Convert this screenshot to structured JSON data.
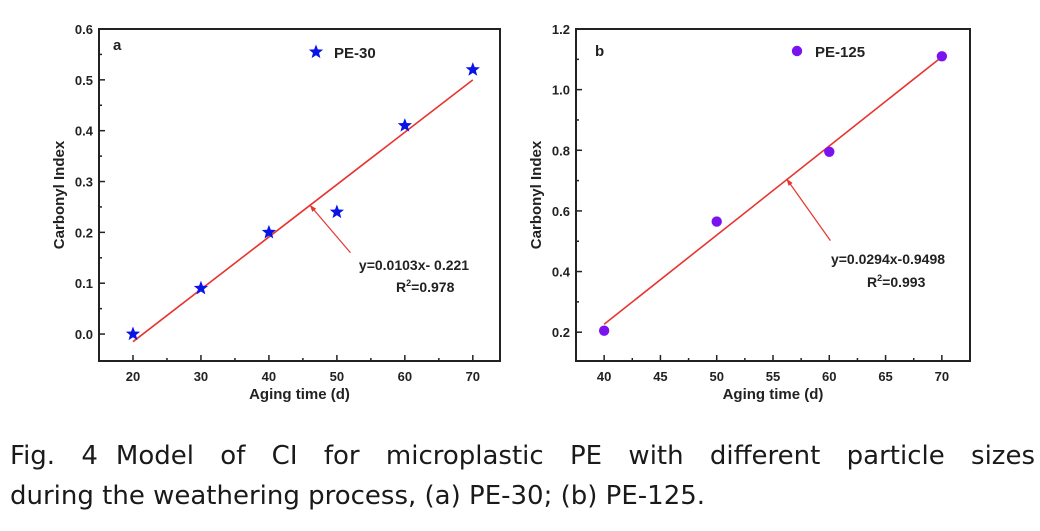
{
  "chart_data": [
    {
      "type": "scatter",
      "panel_label": "a",
      "series": [
        {
          "name": "PE-30",
          "marker": "star",
          "color": "#0a14e6",
          "x": [
            20,
            30,
            40,
            50,
            60,
            70
          ],
          "y": [
            0.0,
            0.09,
            0.2,
            0.24,
            0.41,
            0.52
          ]
        }
      ],
      "fit": {
        "type": "linear",
        "slope": 0.0103,
        "intercept": -0.221,
        "x_range": [
          20,
          70
        ],
        "color": "#e8342f",
        "equation_label": "y=0.0103x- 0.221",
        "r2_label_prefix": "R",
        "r2_label_sup": "2",
        "r2_label_value": "=0.978",
        "annotation_arrow_target": [
          46,
          0.254
        ],
        "annotation_arrow_source": [
          52,
          0.16
        ]
      },
      "xlabel": "Aging time (d)",
      "ylabel": "Carbonyl Index",
      "xlim": [
        15,
        74
      ],
      "ylim": [
        -0.053,
        0.6
      ],
      "xticks": [
        20,
        30,
        40,
        50,
        60,
        70
      ],
      "xtick_labels": [
        "20",
        "30",
        "40",
        "50",
        "60",
        "70"
      ],
      "xminor": [
        25,
        35,
        45,
        55,
        65
      ],
      "yticks": [
        0.0,
        0.1,
        0.2,
        0.3,
        0.4,
        0.5,
        0.6
      ],
      "ytick_labels": [
        "0.0",
        "0.1",
        "0.2",
        "0.3",
        "0.4",
        "0.5",
        "0.6"
      ],
      "yminor": [
        0.05,
        0.15,
        0.25,
        0.35,
        0.45,
        0.55
      ],
      "grid": false,
      "legend_position": "top-center"
    },
    {
      "type": "scatter",
      "panel_label": "b",
      "series": [
        {
          "name": "PE-125",
          "marker": "circle",
          "color": "#7b12f0",
          "x": [
            40,
            50,
            60,
            70
          ],
          "y": [
            0.205,
            0.565,
            0.795,
            1.11
          ]
        }
      ],
      "fit": {
        "type": "linear",
        "slope": 0.0294,
        "intercept": -0.9498,
        "x_range": [
          40,
          70
        ],
        "color": "#e8342f",
        "equation_label": "y=0.0294x-0.9498",
        "r2_label_prefix": "R",
        "r2_label_sup": "2",
        "r2_label_value": "=0.993",
        "annotation_arrow_target": [
          56.2,
          0.706
        ],
        "annotation_arrow_source": [
          60.1,
          0.502
        ]
      },
      "xlabel": "Aging time (d)",
      "ylabel": "Carbonyl Index",
      "xlim": [
        37.5,
        72.5
      ],
      "ylim": [
        0.105,
        1.2
      ],
      "xticks": [
        40,
        45,
        50,
        55,
        60,
        65,
        70
      ],
      "xtick_labels": [
        "40",
        "45",
        "50",
        "55",
        "60",
        "65",
        "70"
      ],
      "xminor": [
        42.5,
        47.5,
        52.5,
        57.5,
        62.5,
        67.5
      ],
      "yticks": [
        0.2,
        0.4,
        0.6,
        0.8,
        1.0,
        1.2
      ],
      "ytick_labels": [
        "0.2",
        "0.4",
        "0.6",
        "0.8",
        "1.0",
        "1.2"
      ],
      "yminor": [
        0.3,
        0.5,
        0.7,
        0.9,
        1.1
      ],
      "grid": false,
      "legend_position": "top-center"
    }
  ],
  "caption": {
    "fig_number": "Fig. 4",
    "line1": "Model of CI for microplastic PE with different particle sizes",
    "line2": "during the weathering process, (a) PE-30; (b) PE-125."
  }
}
